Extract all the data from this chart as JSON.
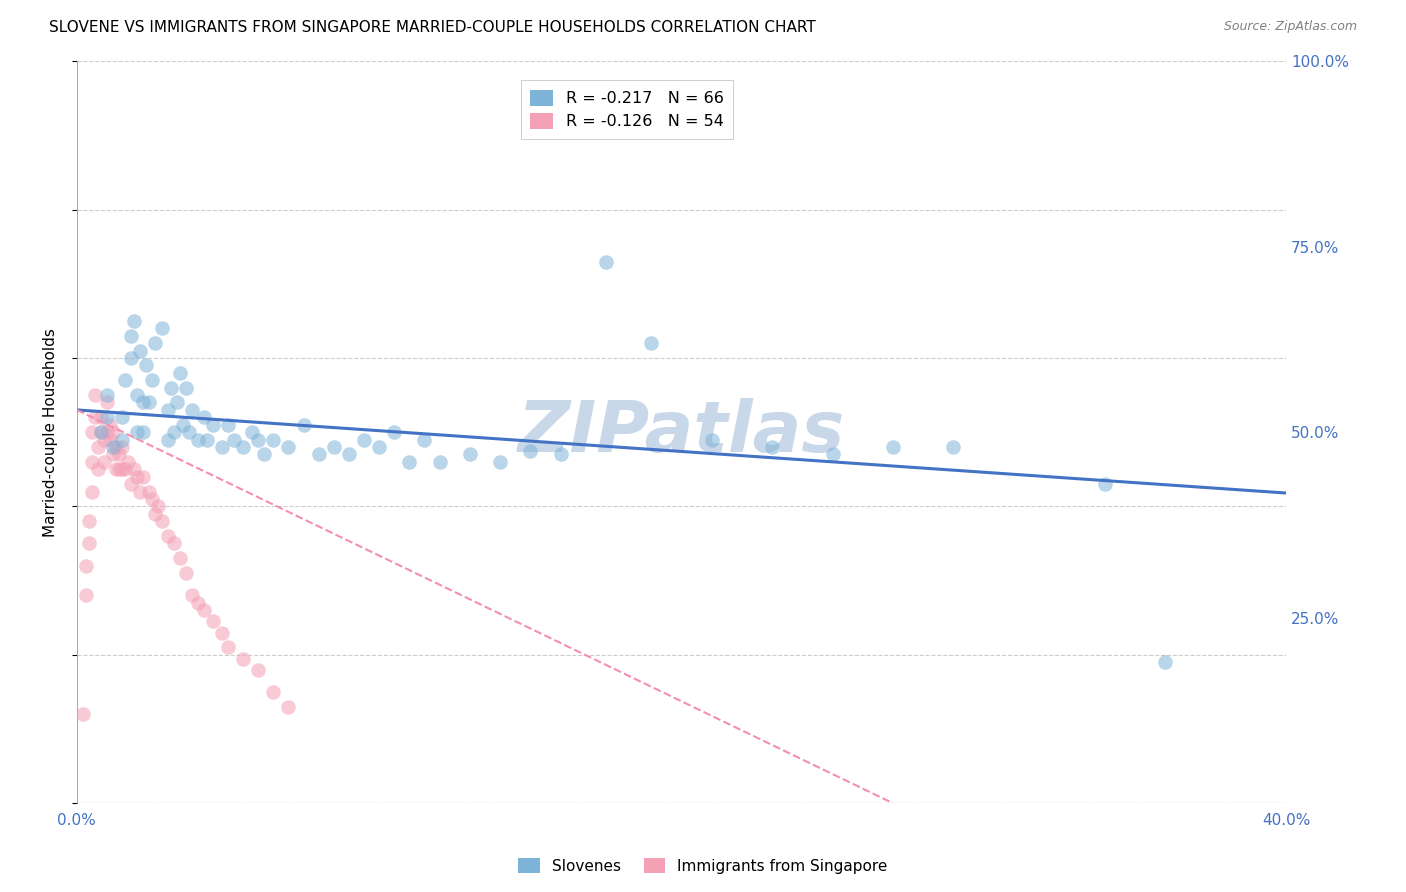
{
  "title": "SLOVENE VS IMMIGRANTS FROM SINGAPORE MARRIED-COUPLE HOUSEHOLDS CORRELATION CHART",
  "source": "Source: ZipAtlas.com",
  "ylabel": "Married-couple Households",
  "xlim": [
    0.0,
    0.4
  ],
  "ylim": [
    0.0,
    1.0
  ],
  "legend_items": [
    {
      "label": "R = -0.217   N = 66",
      "color": "#a8c4e0"
    },
    {
      "label": "R = -0.126   N = 54",
      "color": "#f4a7b9"
    }
  ],
  "legend_labels_bottom": [
    "Slovenes",
    "Immigrants from Singapore"
  ],
  "watermark": "ZIPatlas",
  "blue_scatter_x": [
    0.008,
    0.01,
    0.01,
    0.012,
    0.015,
    0.015,
    0.016,
    0.018,
    0.018,
    0.019,
    0.02,
    0.02,
    0.021,
    0.022,
    0.022,
    0.023,
    0.024,
    0.025,
    0.026,
    0.028,
    0.03,
    0.03,
    0.031,
    0.032,
    0.033,
    0.034,
    0.035,
    0.036,
    0.037,
    0.038,
    0.04,
    0.042,
    0.043,
    0.045,
    0.048,
    0.05,
    0.052,
    0.055,
    0.058,
    0.06,
    0.062,
    0.065,
    0.07,
    0.075,
    0.08,
    0.085,
    0.09,
    0.095,
    0.1,
    0.105,
    0.11,
    0.115,
    0.12,
    0.13,
    0.14,
    0.15,
    0.16,
    0.175,
    0.19,
    0.21,
    0.23,
    0.25,
    0.27,
    0.29,
    0.34,
    0.36
  ],
  "blue_scatter_y": [
    0.5,
    0.52,
    0.55,
    0.48,
    0.49,
    0.52,
    0.57,
    0.6,
    0.63,
    0.65,
    0.5,
    0.55,
    0.61,
    0.5,
    0.54,
    0.59,
    0.54,
    0.57,
    0.62,
    0.64,
    0.49,
    0.53,
    0.56,
    0.5,
    0.54,
    0.58,
    0.51,
    0.56,
    0.5,
    0.53,
    0.49,
    0.52,
    0.49,
    0.51,
    0.48,
    0.51,
    0.49,
    0.48,
    0.5,
    0.49,
    0.47,
    0.49,
    0.48,
    0.51,
    0.47,
    0.48,
    0.47,
    0.49,
    0.48,
    0.5,
    0.46,
    0.49,
    0.46,
    0.47,
    0.46,
    0.475,
    0.47,
    0.73,
    0.62,
    0.49,
    0.48,
    0.47,
    0.48,
    0.48,
    0.43,
    0.19
  ],
  "pink_scatter_x": [
    0.002,
    0.003,
    0.003,
    0.004,
    0.004,
    0.005,
    0.005,
    0.005,
    0.006,
    0.006,
    0.007,
    0.007,
    0.008,
    0.008,
    0.009,
    0.009,
    0.01,
    0.01,
    0.011,
    0.011,
    0.012,
    0.012,
    0.013,
    0.013,
    0.014,
    0.014,
    0.015,
    0.015,
    0.016,
    0.017,
    0.018,
    0.019,
    0.02,
    0.021,
    0.022,
    0.024,
    0.025,
    0.026,
    0.027,
    0.028,
    0.03,
    0.032,
    0.034,
    0.036,
    0.038,
    0.04,
    0.042,
    0.045,
    0.048,
    0.05,
    0.055,
    0.06,
    0.065,
    0.07
  ],
  "pink_scatter_y": [
    0.12,
    0.28,
    0.32,
    0.35,
    0.38,
    0.42,
    0.46,
    0.5,
    0.52,
    0.55,
    0.45,
    0.48,
    0.5,
    0.52,
    0.46,
    0.49,
    0.5,
    0.54,
    0.49,
    0.51,
    0.47,
    0.5,
    0.45,
    0.48,
    0.45,
    0.47,
    0.45,
    0.48,
    0.45,
    0.46,
    0.43,
    0.45,
    0.44,
    0.42,
    0.44,
    0.42,
    0.41,
    0.39,
    0.4,
    0.38,
    0.36,
    0.35,
    0.33,
    0.31,
    0.28,
    0.27,
    0.26,
    0.245,
    0.23,
    0.21,
    0.195,
    0.18,
    0.15,
    0.13
  ],
  "blue_line_x": [
    0.0,
    0.4
  ],
  "blue_line_y": [
    0.53,
    0.418
  ],
  "pink_line_x": [
    0.0,
    0.27
  ],
  "pink_line_y": [
    0.53,
    0.0
  ],
  "scatter_alpha": 0.55,
  "scatter_size": 110,
  "blue_color": "#7EB3D8",
  "pink_color": "#F4A0B5",
  "blue_line_color": "#4472C4",
  "pink_line_color": "#F48FB1",
  "grid_color": "#cccccc",
  "background_color": "#ffffff",
  "title_fontsize": 11,
  "axis_label_fontsize": 11,
  "tick_fontsize": 11,
  "watermark_color": "#c8d8e8",
  "watermark_fontsize": 52,
  "ytick_vals": [
    1.0,
    0.75,
    0.5,
    0.25
  ],
  "ytick_labels": [
    "100.0%",
    "75.0%",
    "50.0%",
    "25.0%"
  ],
  "xtick_vals": [
    0.0,
    0.05,
    0.1,
    0.15,
    0.2,
    0.25,
    0.3,
    0.35,
    0.4
  ],
  "xtick_labels": [
    "0.0%",
    "",
    "",
    "",
    "",
    "",
    "",
    "",
    "40.0%"
  ]
}
